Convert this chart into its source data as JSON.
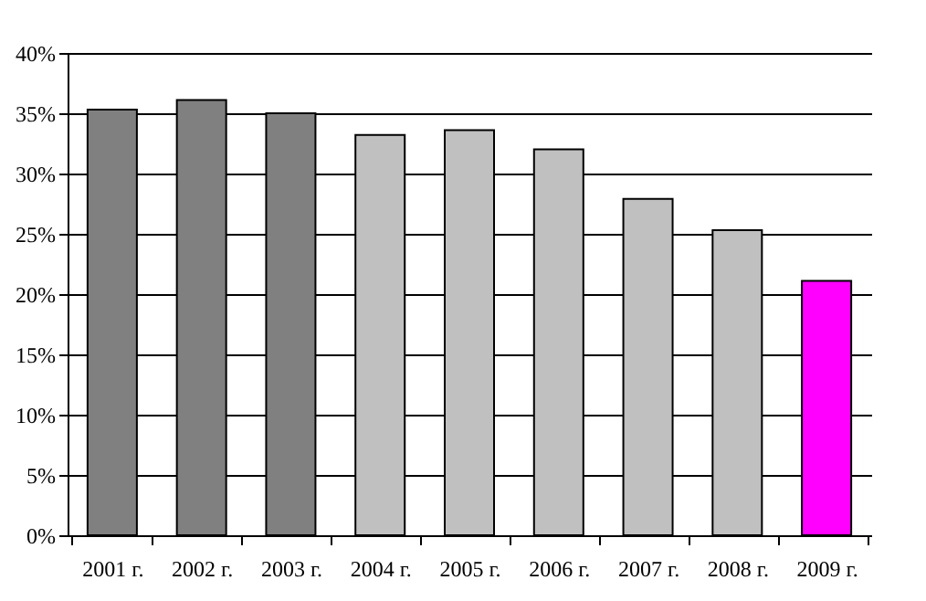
{
  "chart_data": {
    "type": "bar",
    "categories": [
      "2001 г.",
      "2002 г.",
      "2003 г.",
      "2004 г.",
      "2005 г.",
      "2006 г.",
      "2007 г.",
      "2008 г.",
      "2009 г."
    ],
    "values": [
      35.3,
      36.1,
      35.0,
      33.2,
      33.6,
      32.0,
      27.9,
      25.3,
      21.1
    ],
    "colors": [
      "#808080",
      "#808080",
      "#808080",
      "#c0c0c0",
      "#c0c0c0",
      "#c0c0c0",
      "#c0c0c0",
      "#c0c0c0",
      "#ff00ff"
    ],
    "ylim": [
      0,
      40
    ],
    "yticks": [
      {
        "value": 0,
        "label": "0%"
      },
      {
        "value": 5,
        "label": "5%"
      },
      {
        "value": 10,
        "label": "10%"
      },
      {
        "value": 15,
        "label": "15%"
      },
      {
        "value": 20,
        "label": "20%"
      },
      {
        "value": 25,
        "label": "25%"
      },
      {
        "value": 30,
        "label": "30%"
      },
      {
        "value": 35,
        "label": "35%"
      },
      {
        "value": 40,
        "label": "40%"
      }
    ],
    "grid": "y"
  }
}
